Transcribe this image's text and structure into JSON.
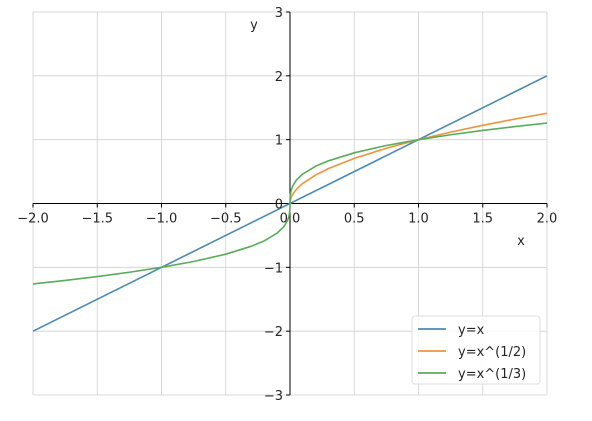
{
  "chart_data": {
    "type": "line",
    "title": "",
    "xlabel": "x",
    "ylabel": "y",
    "xlim": [
      -2.0,
      2.0
    ],
    "ylim": [
      -3,
      3
    ],
    "x_ticks": [
      -2.0,
      -1.5,
      -1.0,
      -0.5,
      0.0,
      0.5,
      1.0,
      1.5,
      2.0
    ],
    "x_tick_labels": [
      "−2.0",
      "−1.5",
      "−1.0",
      "−0.5",
      "0.0",
      "0.5",
      "1.0",
      "1.5",
      "2.0"
    ],
    "y_ticks": [
      -3,
      -2,
      -1,
      0,
      1,
      2,
      3
    ],
    "y_tick_labels": [
      "−3",
      "−2",
      "−1",
      "0",
      "1",
      "2",
      "3"
    ],
    "grid": true,
    "legend_position": "lower-right",
    "series": [
      {
        "name": "y=x",
        "color": "#4a8ab4",
        "x": [
          -2.0,
          2.0
        ],
        "y": [
          -2.0,
          2.0
        ]
      },
      {
        "name": "y=x^(1/2)",
        "color": "#f0923c",
        "x": [
          0.0,
          0.002,
          0.01,
          0.03,
          0.06,
          0.1,
          0.2,
          0.3,
          0.5,
          0.75,
          1.0,
          1.25,
          1.5,
          1.75,
          2.0
        ],
        "y": [
          0.0,
          0.045,
          0.1,
          0.173,
          0.245,
          0.316,
          0.447,
          0.548,
          0.707,
          0.866,
          1.0,
          1.118,
          1.225,
          1.323,
          1.414
        ]
      },
      {
        "name": "y=x^(1/3)",
        "color": "#5aac5a",
        "x": [
          -2.0,
          -1.75,
          -1.5,
          -1.25,
          -1.0,
          -0.75,
          -0.5,
          -0.3,
          -0.2,
          -0.1,
          -0.05,
          -0.02,
          -0.008,
          -0.001,
          0.0,
          0.001,
          0.008,
          0.02,
          0.05,
          0.1,
          0.2,
          0.3,
          0.5,
          0.75,
          1.0,
          1.25,
          1.5,
          1.75,
          2.0
        ],
        "y": [
          -1.26,
          -1.205,
          -1.145,
          -1.077,
          -1.0,
          -0.909,
          -0.794,
          -0.669,
          -0.585,
          -0.464,
          -0.368,
          -0.271,
          -0.2,
          -0.1,
          0.0,
          0.1,
          0.2,
          0.271,
          0.368,
          0.464,
          0.585,
          0.669,
          0.794,
          0.909,
          1.0,
          1.077,
          1.145,
          1.205,
          1.26
        ]
      }
    ]
  }
}
